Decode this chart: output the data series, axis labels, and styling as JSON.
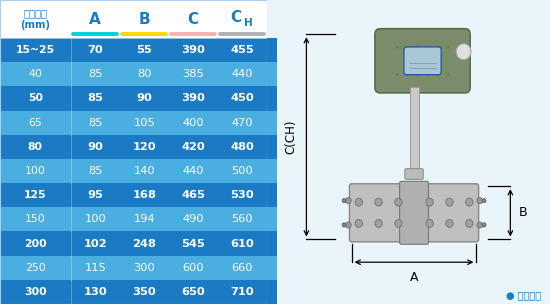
{
  "headers_col0": "仪表口径\n(mm)",
  "headers_cols": [
    "A",
    "B",
    "C",
    "CH"
  ],
  "underline_colors": [
    "#00D0D0",
    "#FFD700",
    "#FFB0B0",
    "#B0B0B0"
  ],
  "rows": [
    [
      "15~25",
      "70",
      "55",
      "390",
      "455"
    ],
    [
      "40",
      "85",
      "80",
      "385",
      "440"
    ],
    [
      "50",
      "85",
      "90",
      "390",
      "450"
    ],
    [
      "65",
      "85",
      "105",
      "400",
      "470"
    ],
    [
      "80",
      "90",
      "120",
      "420",
      "480"
    ],
    [
      "100",
      "85",
      "140",
      "440",
      "500"
    ],
    [
      "125",
      "95",
      "168",
      "465",
      "530"
    ],
    [
      "150",
      "100",
      "194",
      "490",
      "560"
    ],
    [
      "200",
      "102",
      "248",
      "545",
      "610"
    ],
    [
      "250",
      "115",
      "300",
      "600",
      "660"
    ],
    [
      "300",
      "130",
      "350",
      "650",
      "710"
    ]
  ],
  "dark_row_bg": "#1A7BC4",
  "light_row_bg": "#4AAEE0",
  "header_bg": "#1A7BC4",
  "white_bg": "#FFFFFF",
  "fig_bg": "#EAF4FB",
  "blue_stripe": "#2E8BC8",
  "text_white": "#FFFFFF",
  "text_blue": "#1A7BC4",
  "note_text": "● 常规仪表",
  "dim_c": "C(CH)",
  "dim_b": "B",
  "dim_a": "A"
}
